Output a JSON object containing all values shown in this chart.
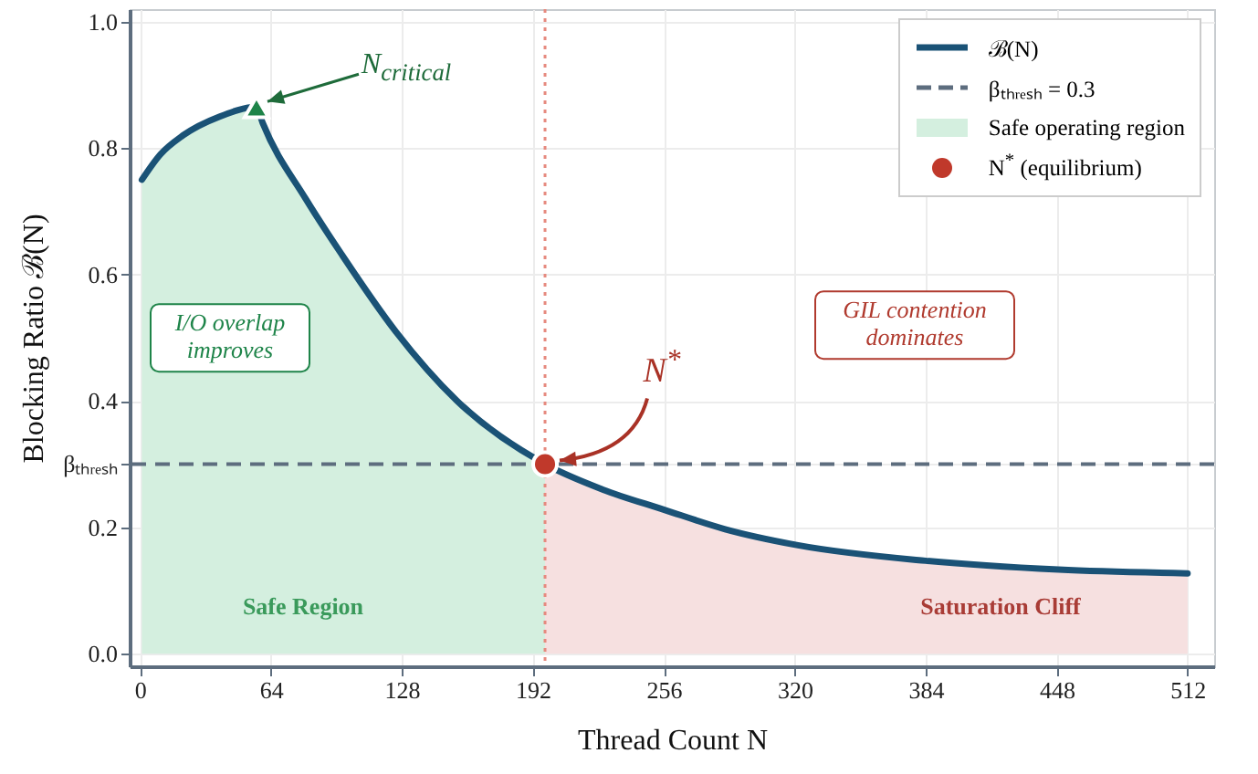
{
  "chart_data": {
    "type": "line",
    "xlabel": "Thread Count N",
    "ylabel": "Blocking Ratio ℬ(N)",
    "xlim": [
      -5,
      525
    ],
    "ylim": [
      -0.02,
      1.02
    ],
    "xticks": [
      0,
      64,
      128,
      192,
      256,
      320,
      384,
      448,
      512
    ],
    "yticks": [
      {
        "value": 0,
        "label": "0.0"
      },
      0.2,
      {
        "value": 0.3,
        "label": "βₜₕᵣₑₛₕ"
      },
      0.4,
      0.6,
      0.8,
      {
        "value": 1,
        "label": "1.0"
      }
    ],
    "grid": true,
    "legend": "top right",
    "series": [
      {
        "type": "area",
        "name": "Safe operating region",
        "color": "#d4efdf",
        "x": [
          1,
          10,
          21,
          39,
          57,
          60,
          81,
          99,
          125,
          155,
          198
        ],
        "values": [
          0.75,
          0.79,
          0.82,
          0.85,
          0.865,
          0.84,
          0.72,
          0.63,
          0.51,
          0.4,
          0.3
        ]
      },
      {
        "type": "area",
        "color": "#f6e0e0",
        "x": [
          198,
          226,
          256,
          286,
          321,
          384,
          449,
          512
        ],
        "values": [
          0.3,
          0.26,
          0.228,
          0.197,
          0.172,
          0.147,
          0.133,
          0.127
        ]
      },
      {
        "type": "line",
        "name": "ℬ(N)",
        "color": "#1a5276",
        "x": [
          1,
          10,
          21,
          39,
          57,
          60,
          81,
          99,
          125,
          155,
          198,
          226,
          256,
          286,
          321,
          384,
          449,
          512
        ],
        "values": [
          0.75,
          0.79,
          0.82,
          0.85,
          0.865,
          0.84,
          0.72,
          0.63,
          0.51,
          0.4,
          0.3,
          0.26,
          0.228,
          0.197,
          0.172,
          0.147,
          0.133,
          0.127
        ]
      },
      {
        "type": "scatter",
        "marker": "triangle",
        "color": "#1e8449",
        "x": [
          57
        ],
        "values": [
          0.865
        ]
      },
      {
        "type": "scatter",
        "marker": "circle",
        "name": "N$^{*}$ (equilibrium)",
        "color": "#c0392b",
        "x": [
          198
        ],
        "values": [
          0.3
        ]
      }
    ],
    "ref_lines": [
      {
        "axis": "y",
        "value": 0.3,
        "label": "βₜₕᵣₑₛₕ = 0.3",
        "color": "#5d6d7e",
        "line_style": "dashed"
      },
      {
        "axis": "x",
        "value": 198,
        "color": "#e6897e",
        "line_style": "dotted"
      }
    ],
    "annotations": [
      "I/O overlap improves",
      "GIL contention dominates",
      "Safe Region",
      "Saturation Cliff",
      {
        "text": "N$_{critical}$",
        "x": 57,
        "y": 0.865
      },
      {
        "text": "N$^{*}$",
        "x": 198,
        "y": 0.3
      }
    ]
  }
}
